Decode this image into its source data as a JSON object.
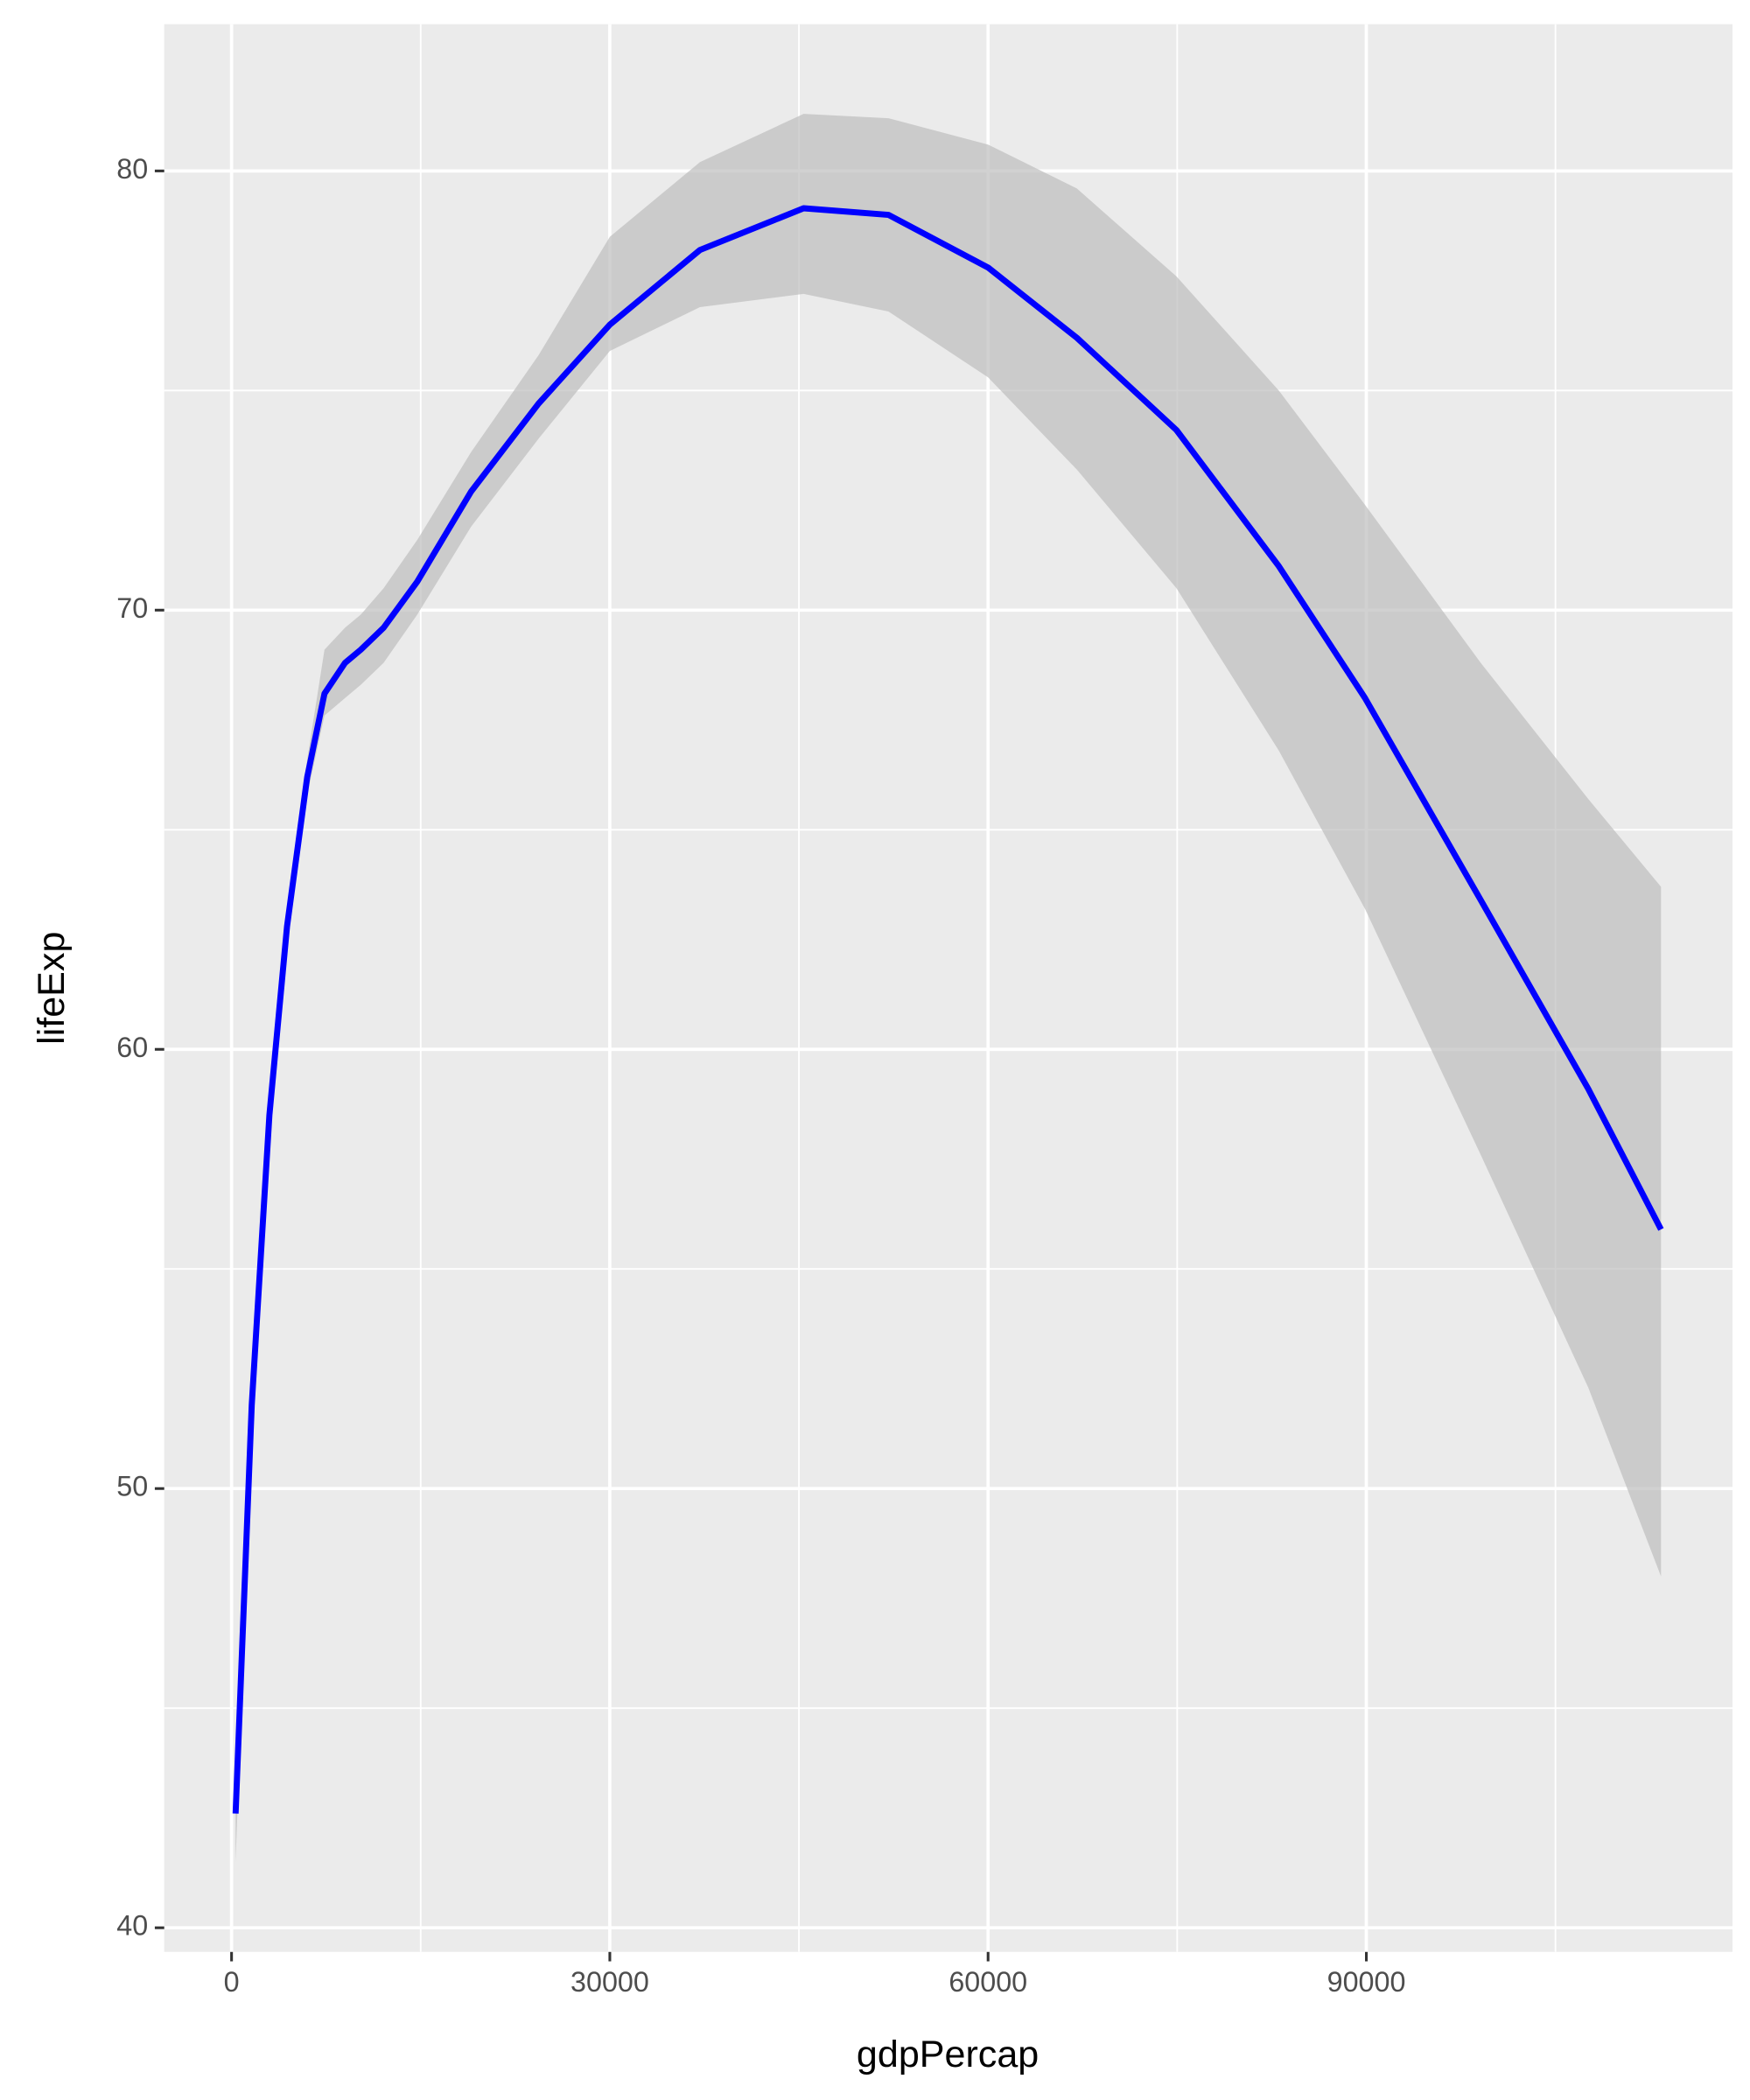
{
  "chart_data": {
    "type": "line",
    "x_label": "gdpPercap",
    "y_label": "lifeExp",
    "x": [
      320,
      1600,
      3000,
      4400,
      6000,
      7370,
      9000,
      10250,
      12060,
      14730,
      19000,
      24340,
      30000,
      37150,
      45370,
      52100,
      60000,
      67040,
      74940,
      83060,
      89890,
      99070,
      107600,
      113370
    ],
    "values": [
      42.6,
      51.9,
      58.5,
      62.8,
      66.2,
      68.1,
      68.8,
      69.1,
      69.6,
      70.65,
      72.7,
      74.7,
      76.5,
      78.2,
      79.15,
      79.0,
      77.8,
      76.2,
      74.1,
      71.0,
      68.0,
      63.4,
      59.1,
      55.9
    ],
    "ci_lower": [
      41.5,
      51.5,
      58.1,
      62.4,
      65.8,
      67.6,
      68.0,
      68.3,
      68.8,
      69.9,
      71.9,
      73.9,
      75.9,
      76.9,
      77.2,
      76.8,
      75.3,
      73.2,
      70.5,
      66.8,
      63.2,
      57.6,
      52.3,
      48.0
    ],
    "ci_upper": [
      43.7,
      52.3,
      58.9,
      63.2,
      66.6,
      69.1,
      69.6,
      69.9,
      70.5,
      71.6,
      73.6,
      75.8,
      78.5,
      80.2,
      81.3,
      81.2,
      80.6,
      79.6,
      77.6,
      75.0,
      72.4,
      68.8,
      65.7,
      63.7
    ],
    "color": "#0000ff",
    "band_color": "#bdbdbd",
    "xlim": [
      -5340,
      119040
    ],
    "ylim": [
      39.45,
      83.34
    ],
    "xticks": [
      0,
      30000,
      60000,
      90000
    ],
    "yticks": [
      40,
      50,
      60,
      70,
      80
    ],
    "xminor": [
      15000,
      45000,
      75000,
      105000
    ],
    "yminor": [
      45,
      55,
      65,
      75
    ],
    "grid": true
  }
}
